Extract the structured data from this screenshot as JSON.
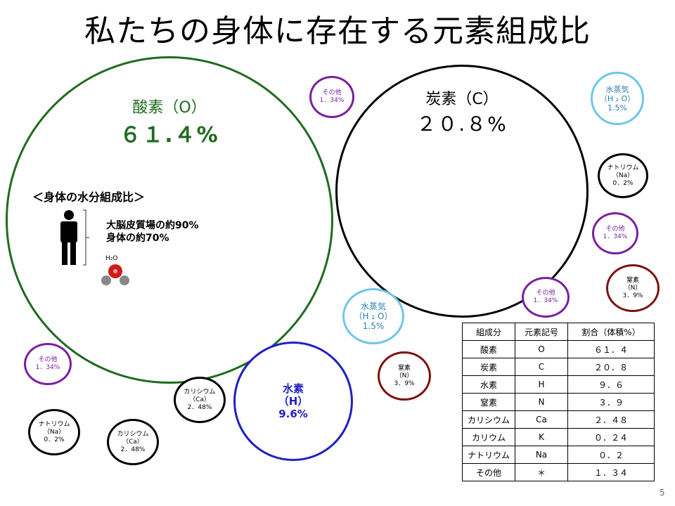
{
  "title": "私たちの身体に存在する元素組成比",
  "slide_number": "5",
  "oxygen": {
    "name": "酸素（O）",
    "percent": "６１.４%"
  },
  "carbon": {
    "name": "炭素（C）",
    "percent": "２０.８%"
  },
  "hydrogen": {
    "line1": "水素",
    "line2": "（H）",
    "line3": "9.6%"
  },
  "water_content": {
    "heading": "＜身体の水分組成比＞",
    "line1": "大脳皮質場の約90%",
    "line2": "身体の約70%",
    "molecule_label": "H₂O"
  },
  "small_circles": {
    "other": {
      "line1": "その他",
      "line2": "1．34%"
    },
    "vapor": {
      "line1": "水蒸気",
      "line2": "（H ₂ O）",
      "line3": "1.5%"
    },
    "sodium": {
      "line1": "ナトリウム",
      "line2": "（Na）",
      "line3": "0．2%"
    },
    "nitrogen": {
      "line1": "窒素",
      "line2": "（N）",
      "line3": "3．9%"
    },
    "calcium": {
      "line1": "カリシウム",
      "line2": "（Ca）",
      "line3": "2．48%"
    }
  },
  "table": {
    "headers": [
      "組成分",
      "元素記号",
      "割合（体積%）"
    ],
    "rows": [
      [
        "酸素",
        "O",
        "６１．４"
      ],
      [
        "炭素",
        "C",
        "２０．８"
      ],
      [
        "水素",
        "H",
        "９．６"
      ],
      [
        "窒素",
        "N",
        "３．９"
      ],
      [
        "カリシウム",
        "Ca",
        "２．４８"
      ],
      [
        "カリウム",
        "K",
        "０．２４"
      ],
      [
        "ナトリウム",
        "Na",
        "０．２"
      ],
      [
        "その他",
        "＊",
        "１．３４"
      ]
    ]
  },
  "colors": {
    "oxygen": "#1f6b1f",
    "hydrogen": "#1f20c2",
    "other": "#7a1f9e",
    "vapor": "#6ec6ea",
    "nitrogen": "#7a1212"
  }
}
